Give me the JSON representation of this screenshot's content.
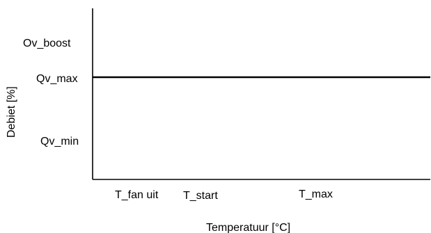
{
  "chart_data": {
    "type": "line",
    "xlabel": "Temperatuur [°C]",
    "ylabel": "Debiet [%]",
    "x_tick_labels": [
      "T_fan uit",
      "T_start",
      "T_max"
    ],
    "y_tick_labels": [
      "Ov_boost",
      "Qv_max",
      "Qv_min"
    ],
    "series": [
      {
        "x": [
          "T_fan uit",
          "T_max"
        ],
        "y": [
          "Qv_max",
          "Qv_max"
        ]
      }
    ],
    "grid": false,
    "legend": "none",
    "line_color": "#000000"
  }
}
